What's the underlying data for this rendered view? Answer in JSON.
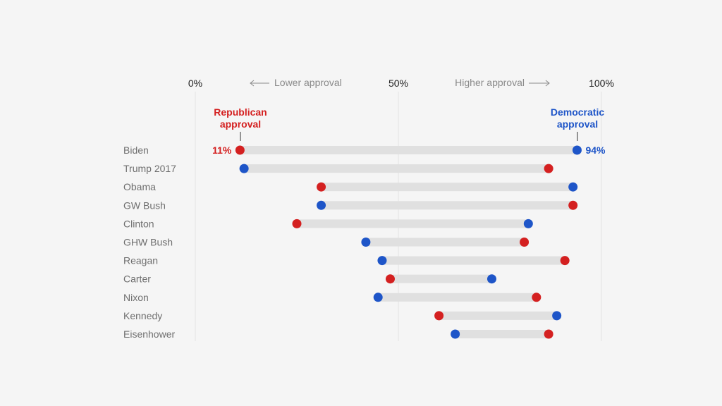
{
  "chart_data": {
    "type": "dumbbell",
    "x_ticks": [
      "0%",
      "50%",
      "100%"
    ],
    "xlim": [
      0,
      100
    ],
    "grid": true,
    "hints": {
      "lower": "Lower approval",
      "higher": "Higher approval"
    },
    "series": [
      {
        "name": "Republican approval",
        "color": "#d42020"
      },
      {
        "name": "Democratic approval",
        "color": "#1e55c8"
      }
    ],
    "legend_labels": {
      "republican": [
        "Republican",
        "approval"
      ],
      "democratic": [
        "Democratic",
        "approval"
      ]
    },
    "value_labels": {
      "republican": "11%",
      "democratic": "94%"
    },
    "presidents": [
      {
        "name": "Biden",
        "republican": 11,
        "democratic": 94
      },
      {
        "name": "Trump 2017",
        "republican": 87,
        "democratic": 12
      },
      {
        "name": "Obama",
        "republican": 31,
        "democratic": 93
      },
      {
        "name": "GW Bush",
        "republican": 93,
        "democratic": 31
      },
      {
        "name": "Clinton",
        "republican": 25,
        "democratic": 82
      },
      {
        "name": "GHW Bush",
        "republican": 81,
        "democratic": 42
      },
      {
        "name": "Reagan",
        "republican": 91,
        "democratic": 46
      },
      {
        "name": "Carter",
        "republican": 48,
        "democratic": 73
      },
      {
        "name": "Nixon",
        "republican": 84,
        "democratic": 45
      },
      {
        "name": "Kennedy",
        "republican": 60,
        "democratic": 89
      },
      {
        "name": "Eisenhower",
        "republican": 87,
        "democratic": 64
      }
    ]
  }
}
